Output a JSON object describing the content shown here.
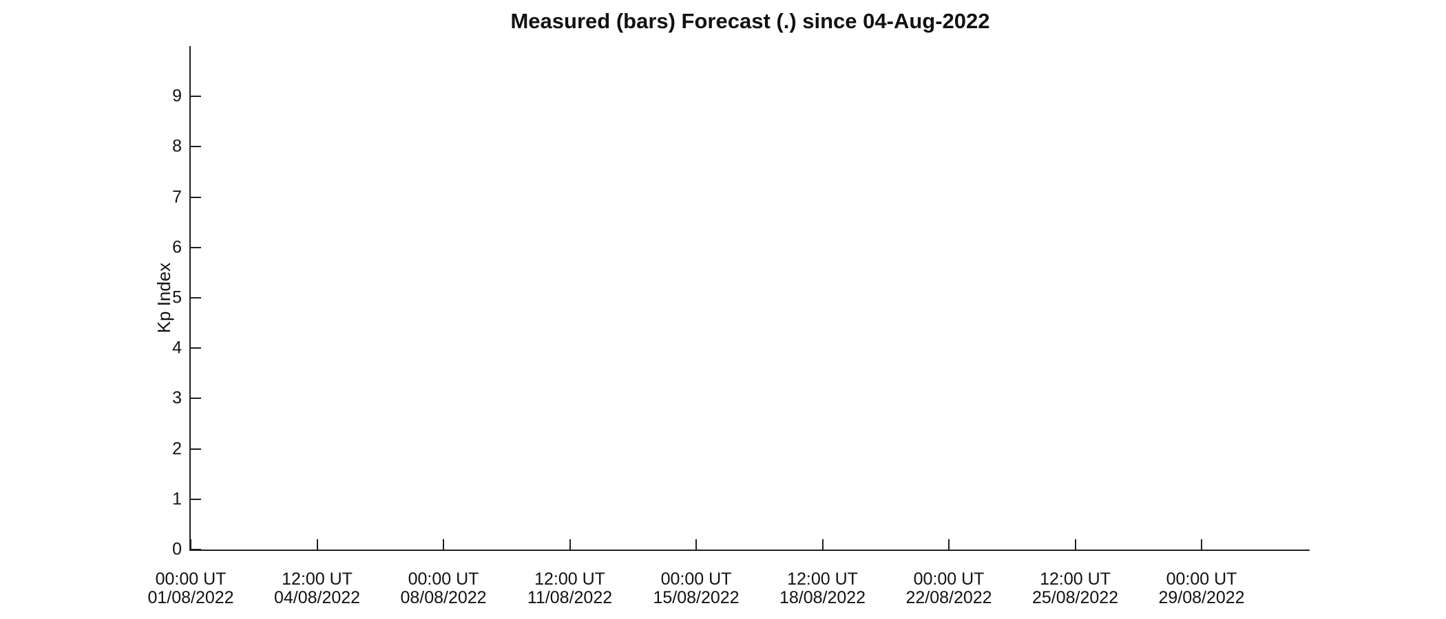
{
  "chart_data": {
    "type": "bar",
    "title": "Measured (bars) Forecast (.) since 04-Aug-2022",
    "ylabel": "Kp Index",
    "xlabel": "",
    "ylim": [
      0,
      10
    ],
    "yticks": [
      0,
      1,
      2,
      3,
      4,
      5,
      6,
      7,
      8,
      9
    ],
    "xticks": [
      {
        "time": "00:00 UT",
        "date": "01/08/2022"
      },
      {
        "time": "12:00 UT",
        "date": "04/08/2022"
      },
      {
        "time": "00:00 UT",
        "date": "08/08/2022"
      },
      {
        "time": "12:00 UT",
        "date": "11/08/2022"
      },
      {
        "time": "00:00 UT",
        "date": "15/08/2022"
      },
      {
        "time": "12:00 UT",
        "date": "18/08/2022"
      },
      {
        "time": "00:00 UT",
        "date": "22/08/2022"
      },
      {
        "time": "12:00 UT",
        "date": "25/08/2022"
      },
      {
        "time": "00:00 UT",
        "date": "29/08/2022"
      }
    ],
    "series": [
      {
        "name": "Measured",
        "marker": "bars",
        "values": []
      },
      {
        "name": "Forecast",
        "marker": "dots",
        "values": []
      }
    ],
    "grid": false,
    "legend_position": "none",
    "axis_color": "#1f1f1f",
    "text_color": "#111111",
    "background_color": "#ffffff"
  }
}
